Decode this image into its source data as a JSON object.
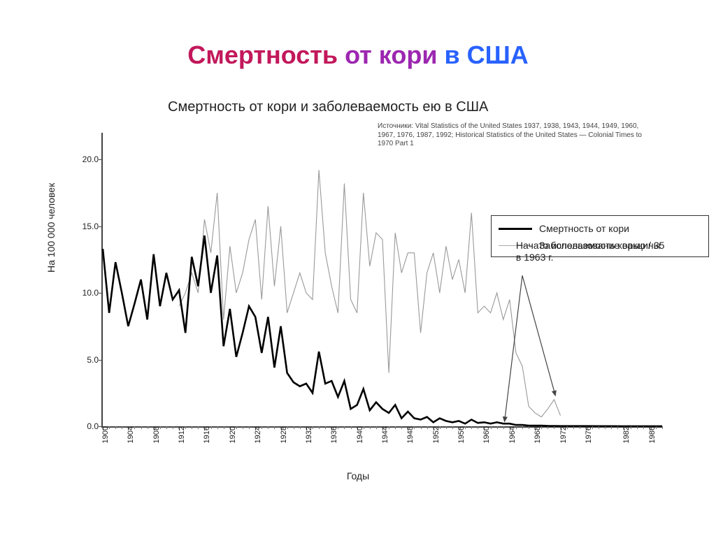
{
  "title": {
    "part1": "Смертность ",
    "part2": "от кори ",
    "part3": "в США",
    "fontsize": 36,
    "color1": "#c2185b",
    "color2": "#9c27b0",
    "color3": "#2962ff"
  },
  "chart": {
    "type": "line",
    "title": "Смертность от кори и заболеваемость ею в США",
    "title_fontsize": 20,
    "sources": "Источники: Vital Statistics of the United States 1937, 1938, 1943, 1944, 1949, 1960, 1967, 1976, 1987, 1992; Historical Statistics of the United States — Colonial Times to 1970 Part 1",
    "sources_fontsize": 10,
    "x_label": "Годы",
    "y_label": "На 100 000 человек",
    "label_fontsize": 14,
    "xlim": [
      1900,
      1988
    ],
    "ylim": [
      0,
      22
    ],
    "yticks": [
      0.0,
      5.0,
      10.0,
      15.0,
      20.0
    ],
    "ytick_labels": [
      "0.0",
      "5.0",
      "10.0",
      "15.0",
      "20.0"
    ],
    "xticks_major": [
      1900,
      1904,
      1908,
      1912,
      1916,
      1920,
      1924,
      1928,
      1932,
      1936,
      1940,
      1944,
      1948,
      1952,
      1956,
      1960,
      1964,
      1968,
      1972,
      1976,
      1982,
      1986
    ],
    "xticks_minor_step": 1,
    "background_color": "#ffffff",
    "axis_color": "#444444",
    "tick_fontsize": 12,
    "legend": {
      "position": "upper-right",
      "border_color": "#333333",
      "items": [
        {
          "label": "Смертность от кори",
          "color": "#000000",
          "line_width": 3
        },
        {
          "label": "Заболеваемость корью / 35",
          "color": "#aaaaaa",
          "line_width": 1
        }
      ]
    },
    "annotation": {
      "text": "Начато использование вакцины в 1963 г.",
      "at_year": 1963,
      "text_pos_year": 1965,
      "text_pos_y": 14,
      "arrow_color": "#444444"
    },
    "series": [
      {
        "name": "mortality",
        "label": "Смертность от кори",
        "color": "#000000",
        "line_width": 2.6,
        "x": [
          1900,
          1901,
          1902,
          1903,
          1904,
          1905,
          1906,
          1907,
          1908,
          1909,
          1910,
          1911,
          1912,
          1913,
          1914,
          1915,
          1916,
          1917,
          1918,
          1919,
          1920,
          1921,
          1922,
          1923,
          1924,
          1925,
          1926,
          1927,
          1928,
          1929,
          1930,
          1931,
          1932,
          1933,
          1934,
          1935,
          1936,
          1937,
          1938,
          1939,
          1940,
          1941,
          1942,
          1943,
          1944,
          1945,
          1946,
          1947,
          1948,
          1949,
          1950,
          1951,
          1952,
          1953,
          1954,
          1955,
          1956,
          1957,
          1958,
          1959,
          1960,
          1961,
          1962,
          1963,
          1964,
          1965,
          1966,
          1967,
          1968,
          1969,
          1970,
          1972,
          1974,
          1976,
          1978,
          1980,
          1982,
          1984,
          1986,
          1988
        ],
        "y": [
          13.3,
          8.5,
          12.3,
          10.0,
          7.5,
          9.2,
          11.0,
          8.0,
          12.9,
          9.0,
          11.5,
          9.5,
          10.2,
          7.0,
          12.7,
          10.5,
          14.3,
          10.0,
          12.8,
          6.0,
          8.8,
          5.2,
          7.0,
          9.0,
          8.2,
          5.5,
          8.2,
          4.4,
          7.5,
          4.0,
          3.3,
          3.0,
          3.2,
          2.5,
          5.6,
          3.2,
          3.4,
          2.2,
          3.4,
          1.3,
          1.6,
          2.8,
          1.2,
          1.8,
          1.3,
          1.0,
          1.6,
          0.6,
          1.1,
          0.6,
          0.5,
          0.7,
          0.3,
          0.6,
          0.4,
          0.3,
          0.4,
          0.2,
          0.5,
          0.25,
          0.3,
          0.2,
          0.3,
          0.2,
          0.2,
          0.1,
          0.1,
          0.05,
          0.05,
          0.05,
          0.03,
          0.02,
          0.02,
          0.02,
          0.01,
          0.01,
          0.005,
          0.005,
          0.005,
          0.005
        ]
      },
      {
        "name": "incidence",
        "label": "Заболеваемость корью / 35",
        "color": "#999999",
        "line_width": 1.1,
        "x": [
          1912,
          1913,
          1914,
          1915,
          1916,
          1917,
          1918,
          1919,
          1920,
          1921,
          1922,
          1923,
          1924,
          1925,
          1926,
          1927,
          1928,
          1929,
          1930,
          1931,
          1932,
          1933,
          1934,
          1935,
          1936,
          1937,
          1938,
          1939,
          1940,
          1941,
          1942,
          1943,
          1944,
          1945,
          1946,
          1947,
          1948,
          1949,
          1950,
          1951,
          1952,
          1953,
          1954,
          1955,
          1956,
          1957,
          1958,
          1959,
          1960,
          1961,
          1962,
          1963,
          1964,
          1965,
          1966,
          1967,
          1968,
          1969,
          1970,
          1971,
          1972
        ],
        "y": [
          9.0,
          10.0,
          11.5,
          10.0,
          15.5,
          13.0,
          17.5,
          8.0,
          13.5,
          10.0,
          11.5,
          14.0,
          15.5,
          9.5,
          16.5,
          10.5,
          15.0,
          8.5,
          10.0,
          11.5,
          10.0,
          9.5,
          19.2,
          13.0,
          10.5,
          8.5,
          18.2,
          9.5,
          8.5,
          17.5,
          12.0,
          14.5,
          14.0,
          4.0,
          14.5,
          11.5,
          13.0,
          13.0,
          7.0,
          11.5,
          13.0,
          10.0,
          13.5,
          11.0,
          12.5,
          10.0,
          16.0,
          8.5,
          9.0,
          8.5,
          10.0,
          8.0,
          9.5,
          5.5,
          4.5,
          1.5,
          1.0,
          0.7,
          1.3,
          2.0,
          0.8
        ]
      }
    ]
  }
}
